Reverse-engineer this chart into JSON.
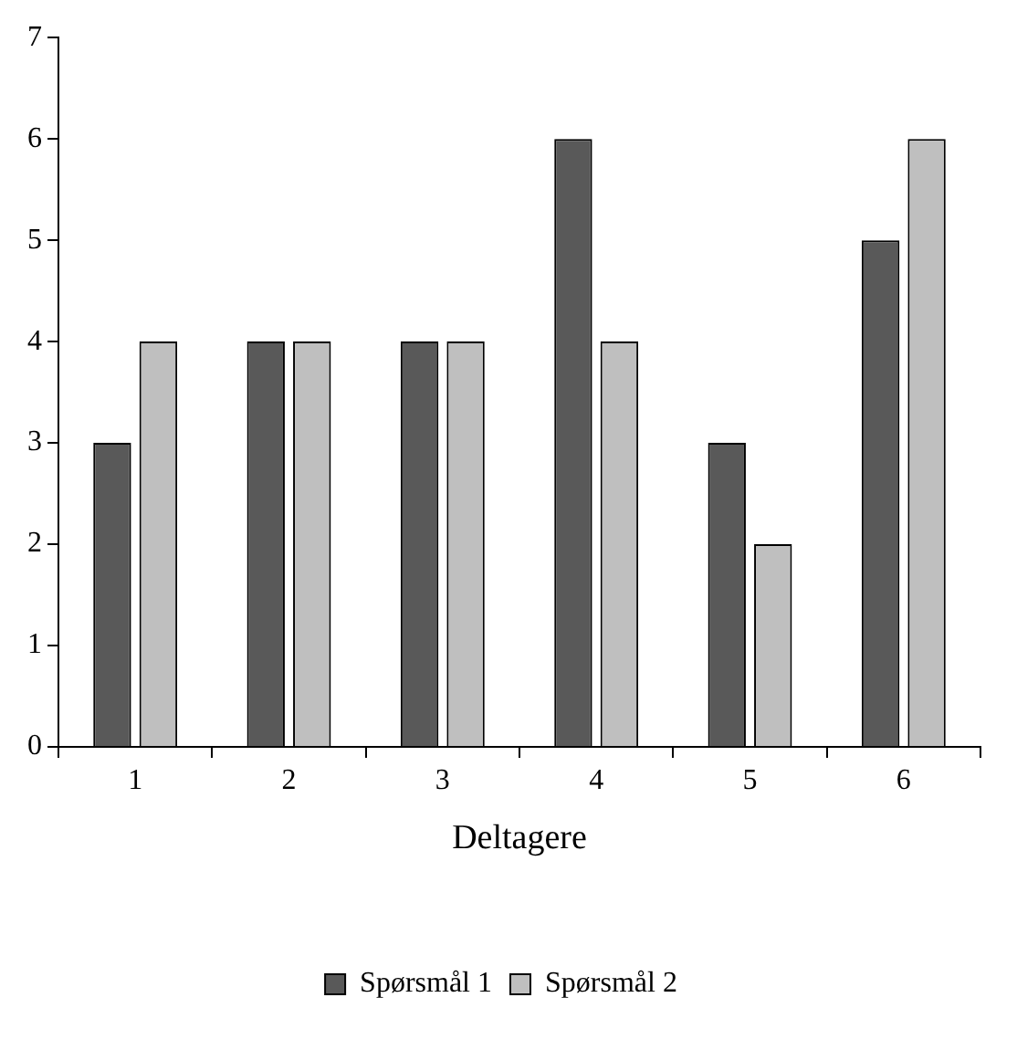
{
  "chart_data": {
    "type": "bar",
    "xlabel": "Deltagere",
    "categories": [
      "1",
      "2",
      "3",
      "4",
      "5",
      "6"
    ],
    "series": [
      {
        "name": "Spørsmål 1",
        "color": "#595959",
        "values": [
          3,
          4,
          4,
          6,
          3,
          5
        ]
      },
      {
        "name": "Spørsmål 2",
        "color": "#bfbfbf",
        "values": [
          4,
          4,
          4,
          4,
          2,
          6
        ]
      }
    ],
    "ylim": [
      0,
      7
    ],
    "yticks": [
      0,
      1,
      2,
      3,
      4,
      5,
      6,
      7
    ],
    "grid": false,
    "legend": "bottom"
  }
}
